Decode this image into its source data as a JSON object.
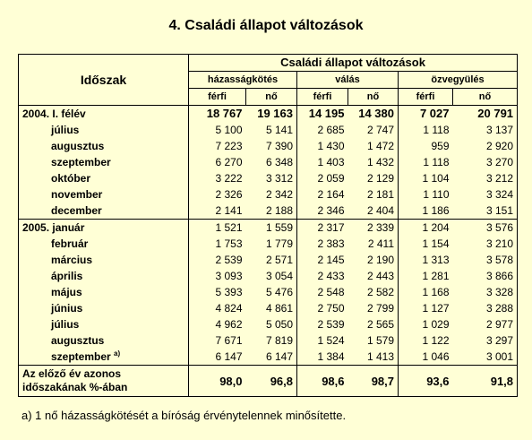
{
  "title": "4. Családi állapot változások",
  "header": {
    "period": "Időszak",
    "main": "Családi állapot változások",
    "groups": [
      "házasságkötés",
      "válás",
      "özvegyülés"
    ],
    "sexes": [
      "férfi",
      "nő",
      "férfi",
      "nő",
      "férfi",
      "nő"
    ]
  },
  "groups": [
    {
      "label": "2004. I. félév",
      "values": [
        "18 767",
        "19 163",
        "14 195",
        "14 380",
        "7 027",
        "20 791"
      ],
      "rows": [
        {
          "label": "július",
          "values": [
            "5 100",
            "5 141",
            "2 685",
            "2 747",
            "1 118",
            "3 137"
          ]
        },
        {
          "label": "augusztus",
          "values": [
            "7 223",
            "7 390",
            "1 430",
            "1 472",
            "959",
            "2 920"
          ]
        },
        {
          "label": "szeptember",
          "values": [
            "6 270",
            "6 348",
            "1 403",
            "1 432",
            "1 118",
            "3 270"
          ]
        },
        {
          "label": "október",
          "values": [
            "3 222",
            "3 312",
            "2 059",
            "2 129",
            "1 104",
            "3 212"
          ]
        },
        {
          "label": "november",
          "values": [
            "2 326",
            "2 342",
            "2 164",
            "2 181",
            "1 110",
            "3 324"
          ]
        },
        {
          "label": "december",
          "values": [
            "2 141",
            "2 188",
            "2 346",
            "2 404",
            "1 186",
            "3 151"
          ]
        }
      ]
    },
    {
      "label": "2005. január",
      "values": [
        "1 521",
        "1 559",
        "2 317",
        "2 339",
        "1 204",
        "3 576"
      ],
      "rows": [
        {
          "label": "február",
          "values": [
            "1 753",
            "1 779",
            "2 383",
            "2 411",
            "1 154",
            "3 210"
          ]
        },
        {
          "label": "március",
          "values": [
            "2 539",
            "2 571",
            "2 145",
            "2 190",
            "1 313",
            "3 578"
          ]
        },
        {
          "label": "április",
          "values": [
            "3 093",
            "3 054",
            "2 433",
            "2 443",
            "1 281",
            "3 866"
          ]
        },
        {
          "label": "május",
          "values": [
            "5 393",
            "5 476",
            "2 548",
            "2 582",
            "1 168",
            "3 328"
          ]
        },
        {
          "label": "június",
          "values": [
            "4 824",
            "4 861",
            "2 750",
            "2 799",
            "1 127",
            "3 288"
          ]
        },
        {
          "label": "július",
          "values": [
            "4 962",
            "5 050",
            "2 539",
            "2 565",
            "1 029",
            "2 977"
          ]
        },
        {
          "label": "augusztus",
          "values": [
            "7 671",
            "7 819",
            "1 524",
            "1 579",
            "1 122",
            "3 297"
          ]
        },
        {
          "label": "szeptember",
          "sup": "a)",
          "values": [
            "6 147",
            "6 147",
            "1 384",
            "1 413",
            "1 046",
            "3 001"
          ]
        }
      ]
    }
  ],
  "summary": {
    "label_line1": "Az előző év azonos",
    "label_line2": "időszakának %-ában",
    "values": [
      "98,0",
      "96,8",
      "98,6",
      "98,7",
      "93,6",
      "91,8"
    ]
  },
  "footnote": "a) 1 nő házasságkötését a bíróság érvénytelennek minősítette."
}
